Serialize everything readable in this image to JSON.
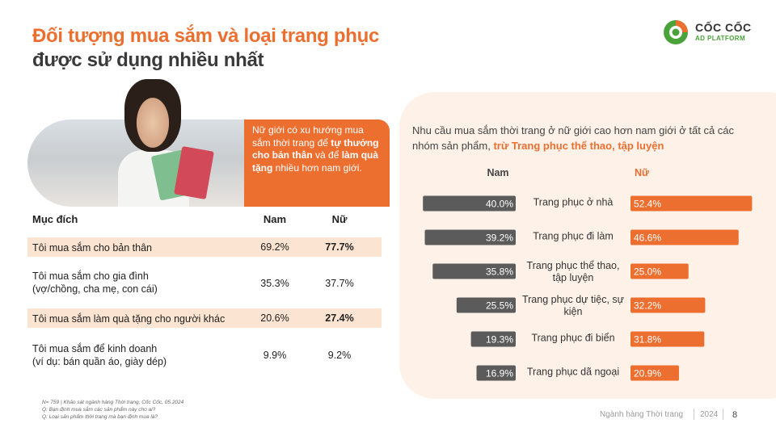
{
  "title": {
    "line1": "Đối tượng mua sắm và loại trang phục",
    "line2": "được sử dụng nhiều nhất"
  },
  "logo": {
    "brand": "CỐC CỐC",
    "sub": "AD PLATFORM"
  },
  "hero": {
    "t1": "Nữ giới có xu hướng mua sắm thời trang để ",
    "b1": "tự thưởng cho bản thân",
    "t2": " và để ",
    "b2": "làm quà tặng",
    "t3": " nhiều hơn nam giới."
  },
  "table": {
    "headers": {
      "label": "Mục đích",
      "nam": "Nam",
      "nu": "Nữ"
    },
    "rows": [
      {
        "line1": "Tôi mua sắm cho bản thân",
        "line2": "",
        "nam": "69.2%",
        "nu": "77.7%"
      },
      {
        "line1": "Tôi mua sắm cho gia đình",
        "line2": "(vợ/chồng, cha mẹ, con cái)",
        "nam": "35.3%",
        "nu": "37.7%"
      },
      {
        "line1": "Tôi mua sắm làm quà tặng cho người khác",
        "line2": "",
        "nam": "20.6%",
        "nu": "27.4%"
      },
      {
        "line1": "Tôi mua sắm để kinh doanh",
        "line2": "(ví dụ: bán quần áo, giày dép)",
        "nam": "9.9%",
        "nu": "9.2%"
      }
    ]
  },
  "chart_intro": {
    "text": "Nhu cầu mua sắm thời trang ở nữ giới cao hơn nam giới ở tất cả các nhóm sản phẩm, ",
    "highlight": "trừ Trang phục thể thao, tập luyện"
  },
  "chart_data": {
    "type": "bar",
    "categories": [
      [
        "Trang phục ở nhà"
      ],
      [
        "Trang phục đi làm"
      ],
      [
        "Trang phục thể thao,",
        "tập luyện"
      ],
      [
        "Trang phục dự tiệc, sự",
        "kiện"
      ],
      [
        "Trang phục đi biển"
      ],
      [
        "Trang phục dã ngoại"
      ]
    ],
    "series": [
      {
        "name": "Nam",
        "values": [
          40.0,
          39.2,
          35.8,
          25.5,
          19.3,
          16.9
        ],
        "labels": [
          "40.0%",
          "39.2%",
          "35.8%",
          "25.5%",
          "19.3%",
          "16.9%"
        ],
        "color": "#5b5b5b"
      },
      {
        "name": "Nữ",
        "values": [
          52.4,
          46.6,
          25.0,
          32.2,
          31.8,
          20.9
        ],
        "labels": [
          "52.4%",
          "46.6%",
          "25.0%",
          "32.2%",
          "31.8%",
          "20.9%"
        ],
        "color": "#ec6f30"
      }
    ]
  },
  "footnote": {
    "line1": "N= 759 | Khảo sát ngành hàng Thời trang, Cốc Cốc, 05.2024",
    "line2": "Q: Bạn định mua sắm các sản phẩm này cho ai?",
    "line3": "Q: Loại sản phẩm thời trang mà bạn định mua là?"
  },
  "footer": {
    "section": "Ngành hàng Thời trang",
    "year": "2024",
    "page": "8"
  },
  "colors": {
    "accent": "#ec6f30",
    "dark_bar": "#5b5b5b",
    "panel": "#fdf1e8",
    "highlight_row": "#fbe4d1"
  }
}
